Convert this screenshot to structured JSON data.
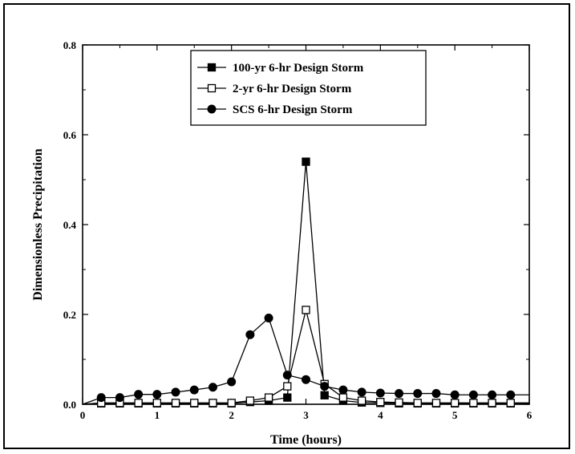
{
  "chart_data": {
    "type": "line",
    "title": "",
    "xlabel": "Time (hours)",
    "ylabel": "Dimensionless Precipitation",
    "xlim": [
      0,
      6
    ],
    "ylim": [
      0,
      0.8
    ],
    "xticks": [
      "0",
      "1",
      "2",
      "3",
      "4",
      "5",
      "6"
    ],
    "yticks": [
      "0.0",
      "0.2",
      "0.4",
      "0.6",
      "0.8"
    ],
    "grid": false,
    "legend_position": "top-center",
    "series": [
      {
        "name": "100-yr 6-hr Design Storm",
        "marker": "filled-square",
        "color": "#000000",
        "x": [
          0.25,
          0.5,
          0.75,
          1.0,
          1.25,
          1.5,
          1.75,
          2.0,
          2.25,
          2.5,
          2.75,
          3.0,
          3.25,
          3.5,
          3.75,
          4.0,
          4.25,
          4.5,
          4.75,
          5.0,
          5.25,
          5.5,
          5.75
        ],
        "values": [
          0.002,
          0.002,
          0.002,
          0.002,
          0.002,
          0.002,
          0.002,
          0.002,
          0.005,
          0.008,
          0.015,
          0.54,
          0.02,
          0.008,
          0.004,
          0.003,
          0.002,
          0.002,
          0.002,
          0.002,
          0.002,
          0.002,
          0.002
        ]
      },
      {
        "name": "2-yr 6-hr Design Storm",
        "marker": "open-square",
        "color": "#000000",
        "x": [
          0.25,
          0.5,
          0.75,
          1.0,
          1.25,
          1.5,
          1.75,
          2.0,
          2.25,
          2.5,
          2.75,
          3.0,
          3.25,
          3.5,
          3.75,
          4.0,
          4.25,
          4.5,
          4.75,
          5.0,
          5.25,
          5.5,
          5.75
        ],
        "values": [
          0.003,
          0.003,
          0.003,
          0.003,
          0.003,
          0.003,
          0.003,
          0.003,
          0.008,
          0.015,
          0.04,
          0.21,
          0.045,
          0.015,
          0.008,
          0.005,
          0.004,
          0.003,
          0.003,
          0.003,
          0.003,
          0.003,
          0.003
        ]
      },
      {
        "name": "SCS 6-hr Design Storm",
        "marker": "filled-circle",
        "color": "#000000",
        "x": [
          0.25,
          0.5,
          0.75,
          1.0,
          1.25,
          1.5,
          1.75,
          2.0,
          2.25,
          2.5,
          2.75,
          3.0,
          3.25,
          3.5,
          3.75,
          4.0,
          4.25,
          4.5,
          4.75,
          5.0,
          5.25,
          5.5,
          5.75
        ],
        "values": [
          0.015,
          0.015,
          0.022,
          0.022,
          0.027,
          0.032,
          0.038,
          0.05,
          0.155,
          0.192,
          0.065,
          0.055,
          0.04,
          0.032,
          0.027,
          0.025,
          0.024,
          0.024,
          0.024,
          0.021,
          0.021,
          0.021,
          0.021
        ]
      }
    ]
  }
}
